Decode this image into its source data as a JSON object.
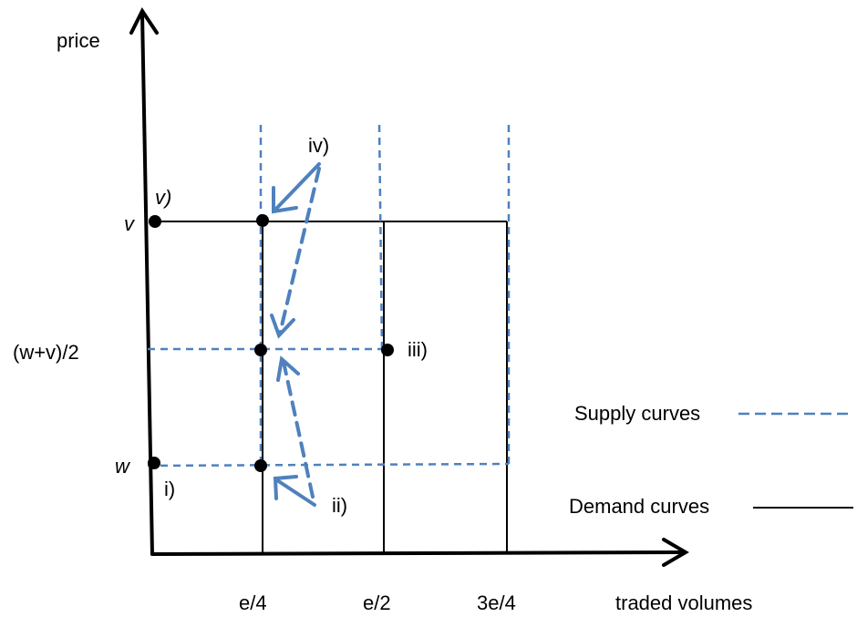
{
  "axes": {
    "y_label": "price",
    "x_label": "traded volumes"
  },
  "x_ticks": [
    "e/4",
    "e/2",
    "3e/4"
  ],
  "price_levels": {
    "v": "v",
    "mid": "(w+v)/2",
    "w": "w"
  },
  "point_labels": {
    "i": "i)",
    "ii": "ii)",
    "iii": "iii)",
    "iv": "iv)",
    "v": "v)"
  },
  "legend": {
    "supply": "Supply curves",
    "demand": "Demand curves"
  },
  "colors": {
    "supply": "#4f81bd",
    "demand": "#000000",
    "points": "#000000"
  }
}
